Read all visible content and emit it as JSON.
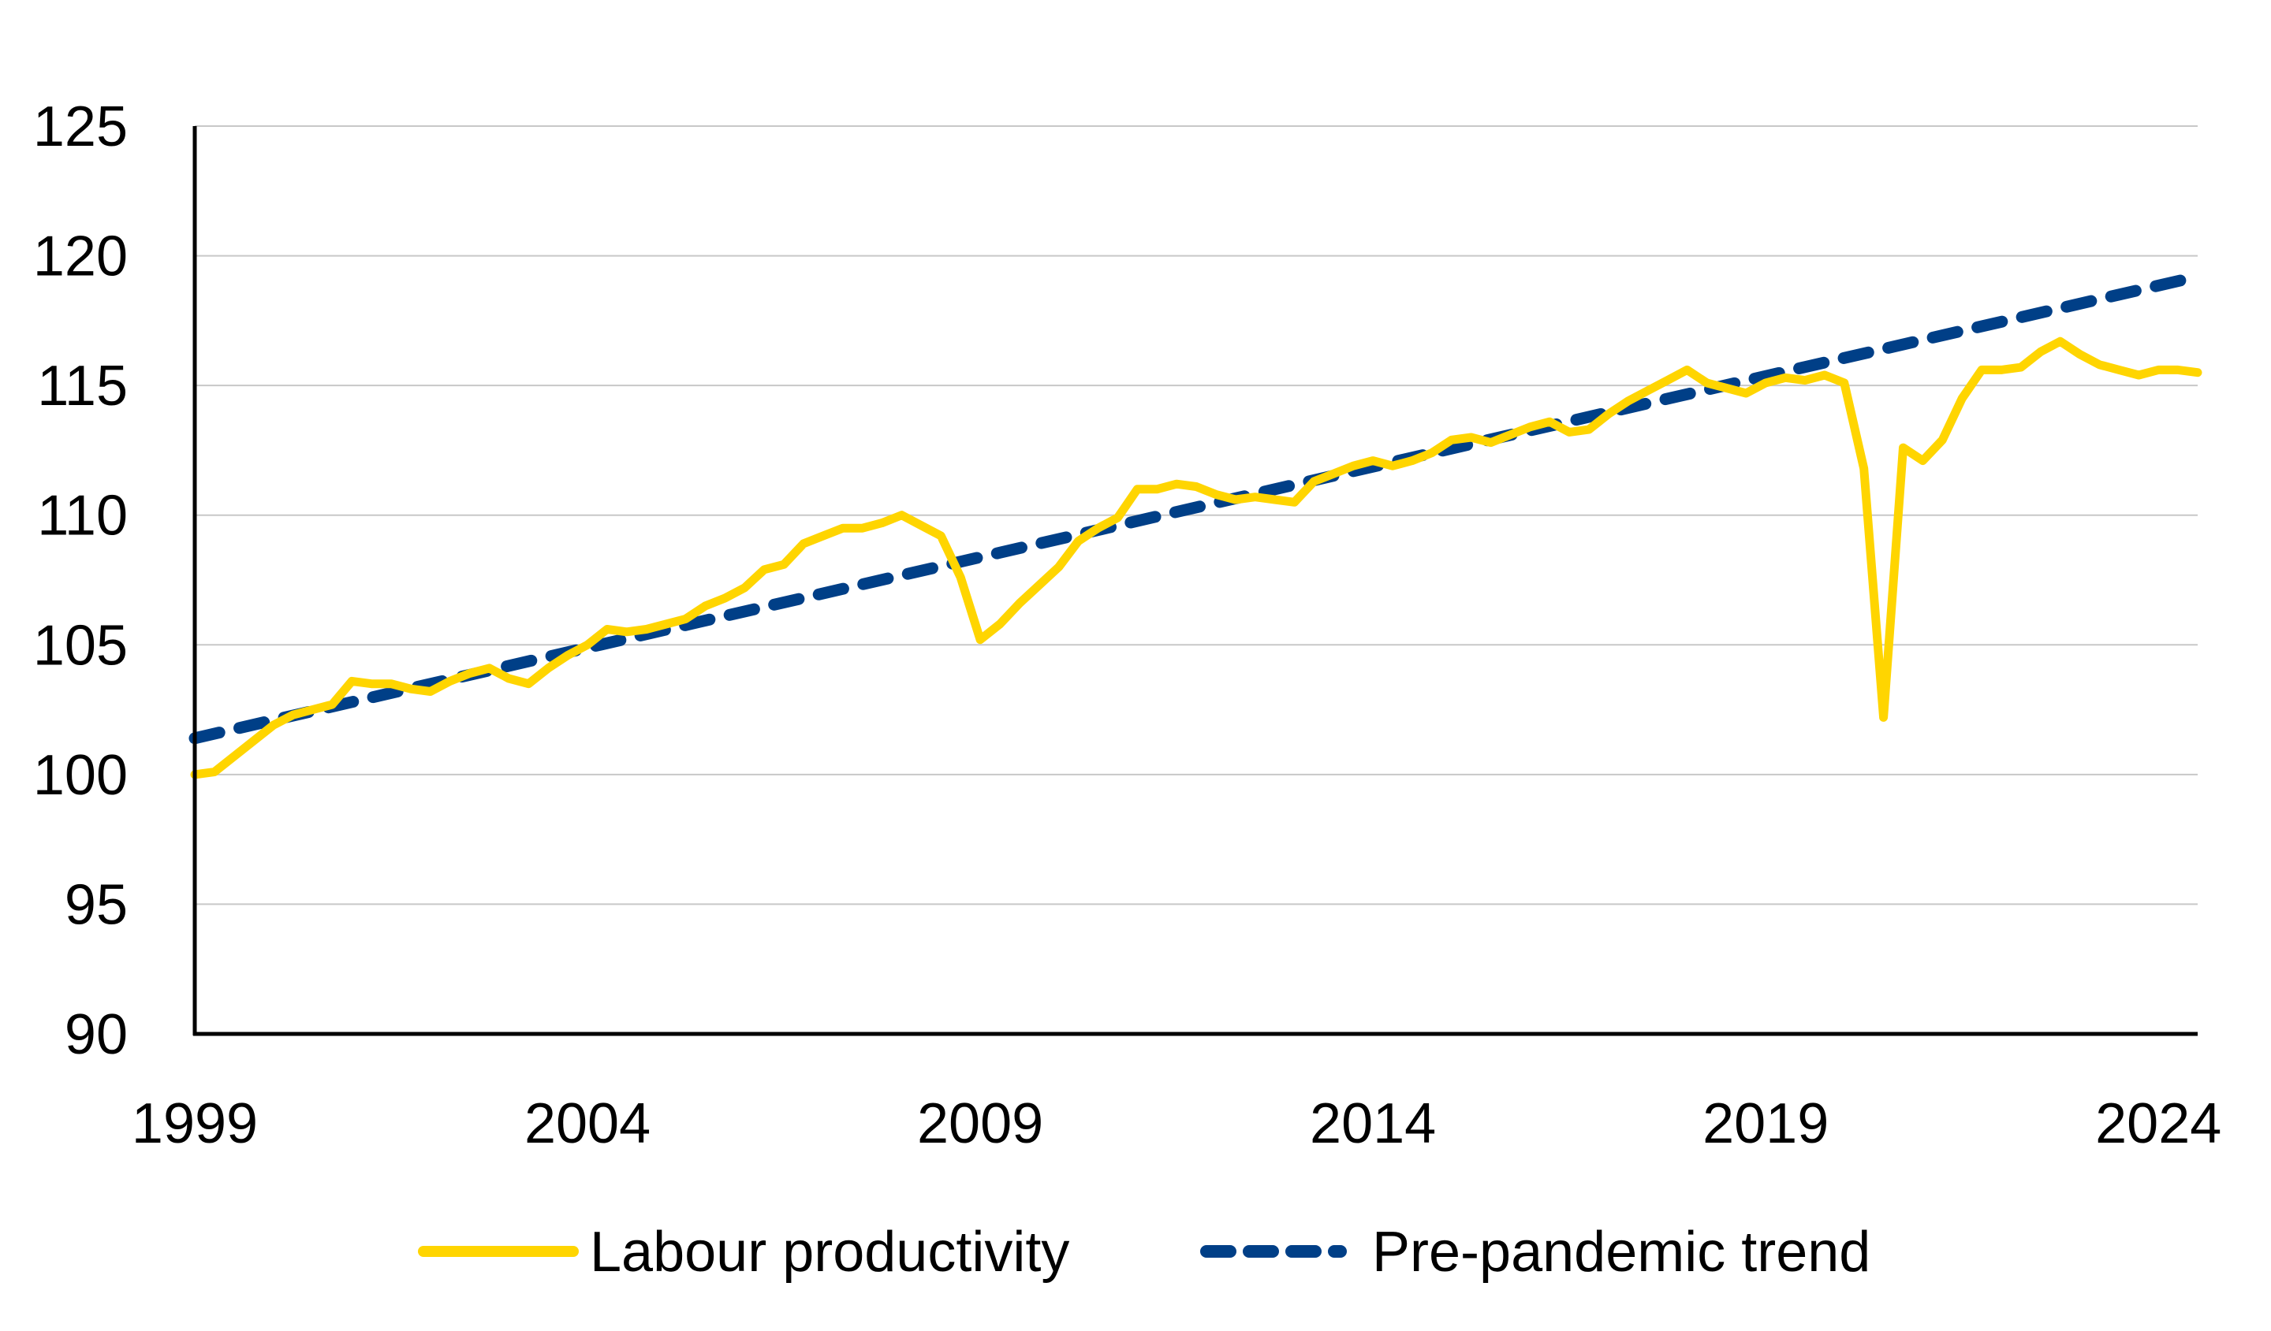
{
  "chart_data": {
    "type": "line",
    "title": "",
    "xlabel": "",
    "ylabel": "",
    "xlim": [
      1999,
      2024.5
    ],
    "ylim": [
      90,
      125
    ],
    "yticks": [
      90,
      95,
      100,
      105,
      110,
      115,
      120,
      125
    ],
    "xticks": [
      1999,
      2004,
      2009,
      2014,
      2019,
      2024
    ],
    "grid": "horizontal",
    "legend_position": "bottom",
    "series": [
      {
        "name": "Labour productivity",
        "color": "#FFD500",
        "style": "solid",
        "points": [
          [
            1999.0,
            100.0
          ],
          [
            1999.25,
            100.1
          ],
          [
            1999.5,
            100.7
          ],
          [
            1999.75,
            101.3
          ],
          [
            2000.0,
            101.9
          ],
          [
            2000.25,
            102.3
          ],
          [
            2000.5,
            102.5
          ],
          [
            2000.75,
            102.7
          ],
          [
            2001.0,
            103.6
          ],
          [
            2001.25,
            103.5
          ],
          [
            2001.5,
            103.5
          ],
          [
            2001.75,
            103.3
          ],
          [
            2002.0,
            103.2
          ],
          [
            2002.25,
            103.6
          ],
          [
            2002.5,
            103.9
          ],
          [
            2002.75,
            104.1
          ],
          [
            2003.0,
            103.7
          ],
          [
            2003.25,
            103.5
          ],
          [
            2003.5,
            104.1
          ],
          [
            2003.75,
            104.6
          ],
          [
            2004.0,
            105.0
          ],
          [
            2004.25,
            105.6
          ],
          [
            2004.5,
            105.5
          ],
          [
            2004.75,
            105.6
          ],
          [
            2005.0,
            105.8
          ],
          [
            2005.25,
            106.0
          ],
          [
            2005.5,
            106.5
          ],
          [
            2005.75,
            106.8
          ],
          [
            2006.0,
            107.2
          ],
          [
            2006.25,
            107.9
          ],
          [
            2006.5,
            108.1
          ],
          [
            2006.75,
            108.9
          ],
          [
            2007.0,
            109.2
          ],
          [
            2007.25,
            109.5
          ],
          [
            2007.5,
            109.5
          ],
          [
            2007.75,
            109.7
          ],
          [
            2008.0,
            110.0
          ],
          [
            2008.25,
            109.6
          ],
          [
            2008.5,
            109.2
          ],
          [
            2008.75,
            107.6
          ],
          [
            2009.0,
            105.2
          ],
          [
            2009.25,
            105.8
          ],
          [
            2009.5,
            106.6
          ],
          [
            2009.75,
            107.3
          ],
          [
            2010.0,
            108.0
          ],
          [
            2010.25,
            109.0
          ],
          [
            2010.5,
            109.5
          ],
          [
            2010.75,
            109.9
          ],
          [
            2011.0,
            111.0
          ],
          [
            2011.25,
            111.0
          ],
          [
            2011.5,
            111.2
          ],
          [
            2011.75,
            111.1
          ],
          [
            2012.0,
            110.8
          ],
          [
            2012.25,
            110.6
          ],
          [
            2012.5,
            110.7
          ],
          [
            2012.75,
            110.6
          ],
          [
            2013.0,
            110.5
          ],
          [
            2013.25,
            111.3
          ],
          [
            2013.5,
            111.6
          ],
          [
            2013.75,
            111.9
          ],
          [
            2014.0,
            112.1
          ],
          [
            2014.25,
            111.9
          ],
          [
            2014.5,
            112.1
          ],
          [
            2014.75,
            112.4
          ],
          [
            2015.0,
            112.9
          ],
          [
            2015.25,
            113.0
          ],
          [
            2015.5,
            112.8
          ],
          [
            2015.75,
            113.1
          ],
          [
            2016.0,
            113.4
          ],
          [
            2016.25,
            113.6
          ],
          [
            2016.5,
            113.2
          ],
          [
            2016.75,
            113.3
          ],
          [
            2017.0,
            113.9
          ],
          [
            2017.25,
            114.4
          ],
          [
            2017.5,
            114.8
          ],
          [
            2017.75,
            115.2
          ],
          [
            2018.0,
            115.6
          ],
          [
            2018.25,
            115.1
          ],
          [
            2018.5,
            114.9
          ],
          [
            2018.75,
            114.7
          ],
          [
            2019.0,
            115.1
          ],
          [
            2019.25,
            115.3
          ],
          [
            2019.5,
            115.2
          ],
          [
            2019.75,
            115.4
          ],
          [
            2020.0,
            115.1
          ],
          [
            2020.25,
            111.8
          ],
          [
            2020.5,
            102.2
          ],
          [
            2020.75,
            112.6
          ],
          [
            2021.0,
            112.1
          ],
          [
            2021.25,
            112.9
          ],
          [
            2021.5,
            114.5
          ],
          [
            2021.75,
            115.6
          ],
          [
            2022.0,
            115.6
          ],
          [
            2022.25,
            115.7
          ],
          [
            2022.5,
            116.3
          ],
          [
            2022.75,
            116.7
          ],
          [
            2023.0,
            116.2
          ],
          [
            2023.25,
            115.8
          ],
          [
            2023.5,
            115.6
          ],
          [
            2023.75,
            115.4
          ],
          [
            2024.0,
            115.6
          ],
          [
            2024.25,
            115.6
          ],
          [
            2024.5,
            115.5
          ]
        ]
      },
      {
        "name": "Pre-pandemic trend",
        "color": "#003F87",
        "style": "dashed",
        "points": [
          [
            1999.0,
            101.4
          ],
          [
            2024.5,
            119.2
          ]
        ]
      }
    ]
  }
}
